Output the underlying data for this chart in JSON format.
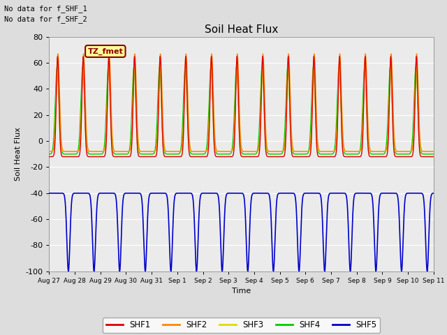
{
  "title": "Soil Heat Flux",
  "ylabel": "Soil Heat Flux",
  "xlabel": "Time",
  "note_lines": [
    "No data for f_SHF_1",
    "No data for f_SHF_2"
  ],
  "tz_label": "TZ_fmet",
  "x_tick_labels": [
    "Aug 27",
    "Aug 28",
    "Aug 29",
    "Aug 30",
    "Aug 31",
    "Sep 1",
    "Sep 2",
    "Sep 3",
    "Sep 4",
    "Sep 5",
    "Sep 6",
    "Sep 7",
    "Sep 8",
    "Sep 9",
    "Sep 10",
    "Sep 11"
  ],
  "ylim": [
    -100,
    80
  ],
  "yticks": [
    -100,
    -80,
    -60,
    -40,
    -20,
    0,
    20,
    40,
    60,
    80
  ],
  "bg_color": "#dddddd",
  "plot_bg_color": "#ebebeb",
  "shf1_color": "#dd0000",
  "shf2_color": "#ff8800",
  "shf3_color": "#dddd00",
  "shf4_color": "#00cc00",
  "shf5_color": "#0000cc",
  "legend_items": [
    {
      "label": "SHF1",
      "color": "#dd0000"
    },
    {
      "label": "SHF2",
      "color": "#ff8800"
    },
    {
      "label": "SHF3",
      "color": "#dddd00"
    },
    {
      "label": "SHF4",
      "color": "#00cc00"
    },
    {
      "label": "SHF5",
      "color": "#0000cc"
    }
  ],
  "n_days": 15,
  "points_per_day": 144
}
